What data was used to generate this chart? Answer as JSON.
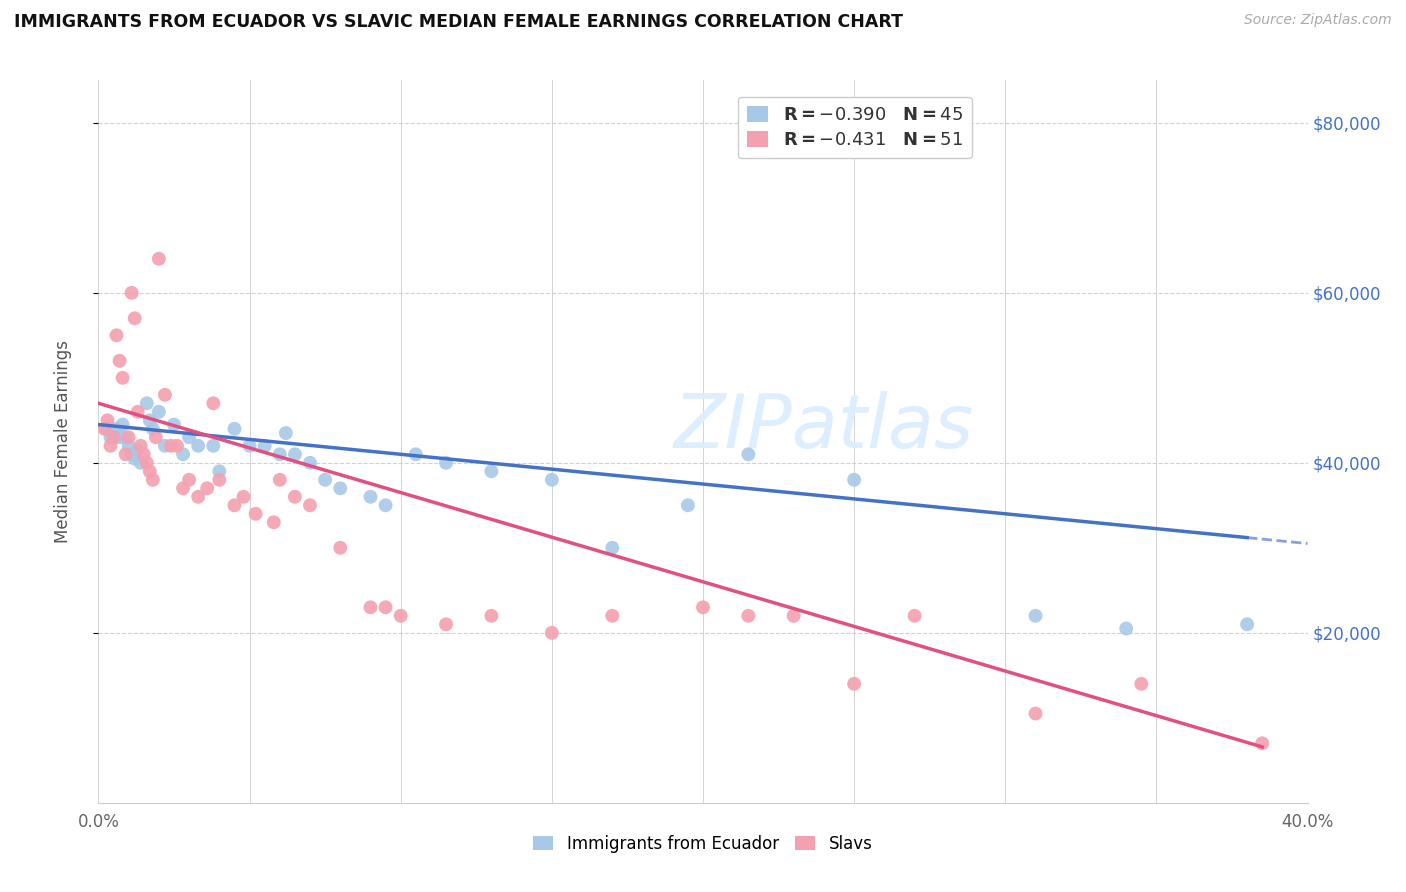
{
  "title": "IMMIGRANTS FROM ECUADOR VS SLAVIC MEDIAN FEMALE EARNINGS CORRELATION CHART",
  "source": "Source: ZipAtlas.com",
  "ylabel": "Median Female Earnings",
  "xlim": [
    0.0,
    0.4
  ],
  "ylim": [
    0,
    85000
  ],
  "xticks": [
    0.0,
    0.05,
    0.1,
    0.15,
    0.2,
    0.25,
    0.3,
    0.35,
    0.4
  ],
  "xtick_labels": [
    "0.0%",
    "",
    "",
    "",
    "",
    "",
    "",
    "",
    "40.0%"
  ],
  "ytick_labels_right": [
    "$20,000",
    "$40,000",
    "$60,000",
    "$80,000"
  ],
  "ytick_values_right": [
    20000,
    40000,
    60000,
    80000
  ],
  "color_ecuador": "#a8c8e8",
  "color_slavs": "#f4a0b0",
  "color_line_ecuador": "#4472c4",
  "color_line_slavs": "#e05080",
  "watermark": "ZIPatlas",
  "ecuador_intercept": 44500,
  "ecuador_slope": -35000,
  "slavs_intercept": 47000,
  "slavs_slope": -105000,
  "ecuador_x": [
    0.003,
    0.004,
    0.005,
    0.006,
    0.007,
    0.008,
    0.009,
    0.01,
    0.011,
    0.012,
    0.013,
    0.014,
    0.016,
    0.017,
    0.018,
    0.02,
    0.022,
    0.025,
    0.028,
    0.03,
    0.033,
    0.038,
    0.04,
    0.045,
    0.05,
    0.055,
    0.06,
    0.062,
    0.065,
    0.07,
    0.075,
    0.08,
    0.09,
    0.095,
    0.105,
    0.115,
    0.13,
    0.15,
    0.17,
    0.195,
    0.215,
    0.25,
    0.31,
    0.34,
    0.38
  ],
  "ecuador_y": [
    44000,
    43000,
    43500,
    44000,
    43000,
    44500,
    43000,
    42000,
    41000,
    40500,
    41500,
    40000,
    47000,
    45000,
    44000,
    46000,
    42000,
    44500,
    41000,
    43000,
    42000,
    42000,
    39000,
    44000,
    42000,
    42000,
    41000,
    43500,
    41000,
    40000,
    38000,
    37000,
    36000,
    35000,
    41000,
    40000,
    39000,
    38000,
    30000,
    35000,
    41000,
    38000,
    22000,
    20500,
    21000
  ],
  "slavs_x": [
    0.002,
    0.003,
    0.004,
    0.005,
    0.006,
    0.007,
    0.008,
    0.009,
    0.01,
    0.011,
    0.012,
    0.013,
    0.014,
    0.015,
    0.016,
    0.017,
    0.018,
    0.019,
    0.02,
    0.022,
    0.024,
    0.026,
    0.028,
    0.03,
    0.033,
    0.036,
    0.038,
    0.04,
    0.045,
    0.048,
    0.052,
    0.058,
    0.06,
    0.065,
    0.07,
    0.08,
    0.09,
    0.095,
    0.1,
    0.115,
    0.13,
    0.15,
    0.17,
    0.2,
    0.215,
    0.23,
    0.25,
    0.27,
    0.31,
    0.345,
    0.385
  ],
  "slavs_y": [
    44000,
    45000,
    42000,
    43000,
    55000,
    52000,
    50000,
    41000,
    43000,
    60000,
    57000,
    46000,
    42000,
    41000,
    40000,
    39000,
    38000,
    43000,
    64000,
    48000,
    42000,
    42000,
    37000,
    38000,
    36000,
    37000,
    47000,
    38000,
    35000,
    36000,
    34000,
    33000,
    38000,
    36000,
    35000,
    30000,
    23000,
    23000,
    22000,
    21000,
    22000,
    20000,
    22000,
    23000,
    22000,
    22000,
    14000,
    22000,
    10500,
    14000,
    7000
  ]
}
